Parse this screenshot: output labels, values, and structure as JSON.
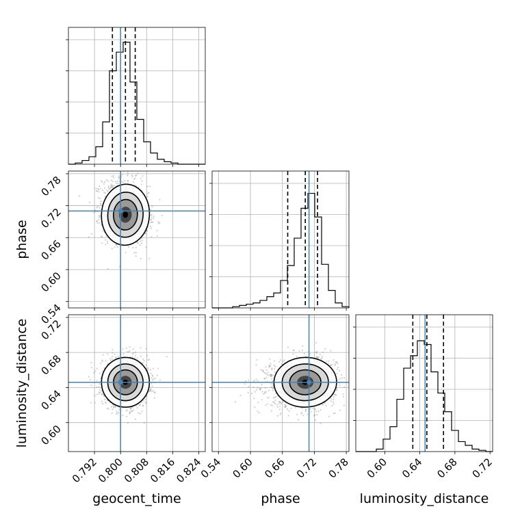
{
  "chart_data": {
    "type": "corner",
    "parameters": [
      "geocent_time",
      "phase",
      "luminosity_distance"
    ],
    "ranges": [
      [
        0.784,
        0.826
      ],
      [
        0.528,
        0.785
      ],
      [
        0.567,
        0.723
      ]
    ],
    "ticks": [
      [
        0.792,
        0.8,
        0.808,
        0.816,
        0.824
      ],
      [
        0.54,
        0.6,
        0.66,
        0.72,
        0.78
      ],
      [
        0.6,
        0.64,
        0.68,
        0.72
      ]
    ],
    "tick_labels": [
      [
        "0.792",
        "0.800",
        "0.808",
        "0.816",
        "0.824"
      ],
      [
        "0.54",
        "0.60",
        "0.66",
        "0.72",
        "0.78"
      ],
      [
        "0.60",
        "0.64",
        "0.68",
        "0.72"
      ]
    ],
    "truths": [
      0.8,
      0.71,
      0.646
    ],
    "quantiles": [
      [
        0.7975,
        0.8015,
        0.8045
      ],
      [
        0.67,
        0.703,
        0.726
      ],
      [
        0.632,
        0.648,
        0.667
      ]
    ],
    "histograms": [
      [
        0,
        0.01,
        0.03,
        0.06,
        0.14,
        0.34,
        0.75,
        0.9,
        0.98,
        0.66,
        0.36,
        0.18,
        0.09,
        0.04,
        0.02,
        0.01,
        0,
        0,
        0,
        0
      ],
      [
        0,
        0,
        0,
        0.01,
        0.02,
        0.03,
        0.04,
        0.06,
        0.09,
        0.12,
        0.22,
        0.34,
        0.56,
        0.8,
        0.92,
        0.73,
        0.35,
        0.14,
        0.04,
        0.01
      ],
      [
        0,
        0,
        0,
        0.02,
        0.1,
        0.2,
        0.42,
        0.67,
        0.77,
        0.89,
        0.86,
        0.64,
        0.47,
        0.32,
        0.17,
        0.08,
        0.05,
        0.02,
        0.01,
        0
      ]
    ],
    "hist2d": [
      {
        "x": 0,
        "y": 1,
        "center": [
          0.8015,
          0.703
        ],
        "sigma": [
          0.0035,
          0.026
        ],
        "rho": -0.15
      },
      {
        "x": 0,
        "y": 2,
        "center": [
          0.8015,
          0.646
        ],
        "sigma": [
          0.0035,
          0.0135
        ],
        "rho": 0.0
      },
      {
        "x": 1,
        "y": 2,
        "center": [
          0.703,
          0.646
        ],
        "sigma": [
          0.028,
          0.0135
        ],
        "rho": 0.05
      }
    ],
    "truth_color": "#4682b4",
    "grid": true
  }
}
